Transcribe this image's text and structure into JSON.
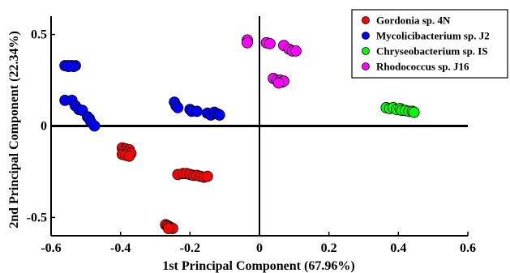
{
  "chart_data": {
    "type": "scatter",
    "title": "",
    "xlabel": "1st Principal Component (67.96%)",
    "ylabel": "2nd Principal Component (22.34%)",
    "xlim": [
      -0.6,
      0.6
    ],
    "ylim": [
      -0.6,
      0.6
    ],
    "xticks": [
      -0.6,
      -0.4,
      -0.2,
      0,
      0.2,
      0.4,
      0.6
    ],
    "xtick_labels": [
      "-0.6",
      "-0.4",
      "-0.2",
      "0",
      "0.2",
      "0.4",
      "0.6"
    ],
    "yticks": [
      -0.5,
      0,
      0.5
    ],
    "ytick_labels": [
      "-0.5",
      "0",
      "0.5"
    ],
    "grid": false,
    "legend_position": "top-right",
    "series": [
      {
        "name": "Gordonia sp. 4N",
        "color": "#ff0000",
        "points": [
          [
            -0.395,
            -0.12
          ],
          [
            -0.385,
            -0.125
          ],
          [
            -0.375,
            -0.13
          ],
          [
            -0.39,
            -0.14
          ],
          [
            -0.38,
            -0.145
          ],
          [
            -0.395,
            -0.155
          ],
          [
            -0.385,
            -0.16
          ],
          [
            -0.37,
            -0.15
          ],
          [
            -0.375,
            -0.165
          ],
          [
            -0.235,
            -0.265
          ],
          [
            -0.22,
            -0.26
          ],
          [
            -0.21,
            -0.26
          ],
          [
            -0.2,
            -0.265
          ],
          [
            -0.19,
            -0.27
          ],
          [
            -0.18,
            -0.27
          ],
          [
            -0.17,
            -0.275
          ],
          [
            -0.16,
            -0.28
          ],
          [
            -0.15,
            -0.275
          ],
          [
            -0.27,
            -0.54
          ],
          [
            -0.265,
            -0.545
          ],
          [
            -0.26,
            -0.55
          ],
          [
            -0.255,
            -0.555
          ],
          [
            -0.25,
            -0.56
          ],
          [
            -0.262,
            -0.56
          ]
        ]
      },
      {
        "name": "Mycolicibacterium sp. J2",
        "color": "#0000ff",
        "points": [
          [
            -0.56,
            0.33
          ],
          [
            -0.55,
            0.33
          ],
          [
            -0.54,
            0.33
          ],
          [
            -0.53,
            0.33
          ],
          [
            -0.535,
            0.325
          ],
          [
            -0.55,
            0.325
          ],
          [
            -0.56,
            0.14
          ],
          [
            -0.54,
            0.14
          ],
          [
            -0.53,
            0.11
          ],
          [
            -0.52,
            0.09
          ],
          [
            -0.51,
            0.085
          ],
          [
            -0.495,
            0.05
          ],
          [
            -0.49,
            0.04
          ],
          [
            -0.485,
            0.02
          ],
          [
            -0.475,
            0.0
          ],
          [
            -0.245,
            0.13
          ],
          [
            -0.24,
            0.11
          ],
          [
            -0.235,
            0.1
          ],
          [
            -0.2,
            0.09
          ],
          [
            -0.195,
            0.08
          ],
          [
            -0.18,
            0.08
          ],
          [
            -0.15,
            0.07
          ],
          [
            -0.14,
            0.06
          ],
          [
            -0.13,
            0.075
          ],
          [
            -0.12,
            0.065
          ],
          [
            -0.115,
            0.06
          ]
        ]
      },
      {
        "name": "Chryseobacterium sp. IS",
        "color": "#00ff00",
        "points": [
          [
            0.365,
            0.1
          ],
          [
            0.375,
            0.095
          ],
          [
            0.385,
            0.1
          ],
          [
            0.395,
            0.09
          ],
          [
            0.405,
            0.095
          ],
          [
            0.41,
            0.085
          ],
          [
            0.42,
            0.085
          ],
          [
            0.43,
            0.08
          ],
          [
            0.44,
            0.08
          ],
          [
            0.445,
            0.075
          ]
        ]
      },
      {
        "name": "Rhodococcus sp. J16",
        "color": "#ff00ff",
        "points": [
          [
            -0.035,
            0.47
          ],
          [
            -0.035,
            0.455
          ],
          [
            0.02,
            0.455
          ],
          [
            0.03,
            0.45
          ],
          [
            0.07,
            0.44
          ],
          [
            0.085,
            0.42
          ],
          [
            0.095,
            0.41
          ],
          [
            0.105,
            0.41
          ],
          [
            0.04,
            0.26
          ],
          [
            0.05,
            0.25
          ],
          [
            0.06,
            0.25
          ],
          [
            0.065,
            0.24
          ],
          [
            0.07,
            0.245
          ],
          [
            0.055,
            0.235
          ]
        ]
      }
    ]
  }
}
